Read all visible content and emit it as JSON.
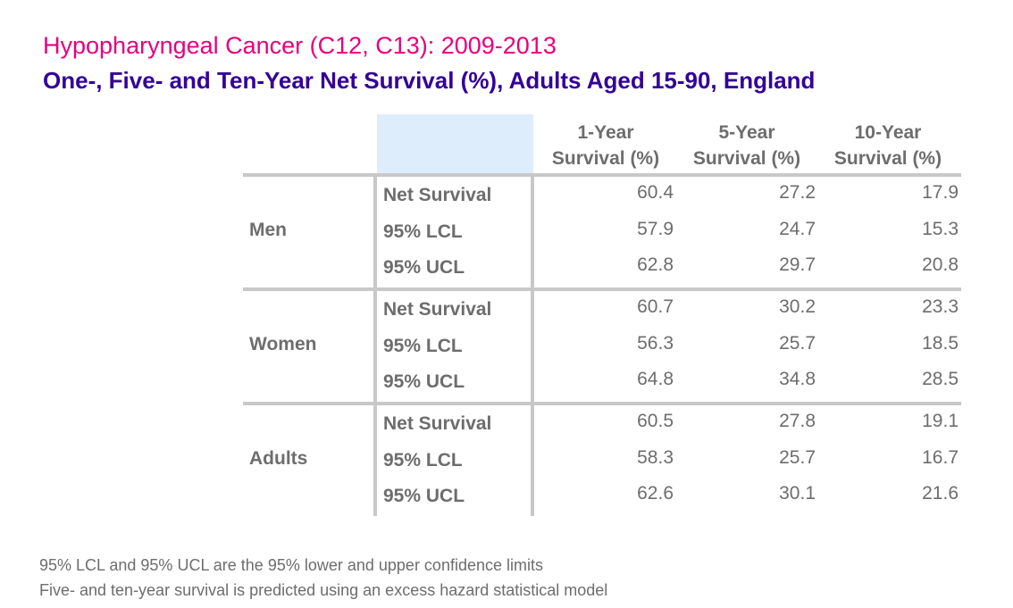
{
  "title": "Hypopharyngeal Cancer (C12, C13): 2009-2013",
  "subtitle": "One-, Five- and Ten-Year Net Survival (%), Adults Aged 15-90, England",
  "colors": {
    "title": "#e6007e",
    "subtitle": "#330099",
    "header_fill": "#ddedfc",
    "rules": "#c8c8c8",
    "text": "#6d6d6d"
  },
  "footnotes": [
    "95% LCL and 95% UCL are the 95% lower and upper confidence limits",
    "Five- and ten-year survival is predicted using an excess hazard statistical model"
  ],
  "chart_data": {
    "type": "table",
    "columns": [
      {
        "line1": "1-Year",
        "line2": "Survival (%)"
      },
      {
        "line1": "5-Year",
        "line2": "Survival (%)"
      },
      {
        "line1": "10-Year",
        "line2": "Survival (%)"
      }
    ],
    "groups": [
      {
        "name": "Men",
        "rows": [
          {
            "measure": "Net Survival",
            "values": [
              "60.4",
              "27.2",
              "17.9"
            ]
          },
          {
            "measure": "95% LCL",
            "values": [
              "57.9",
              "24.7",
              "15.3"
            ]
          },
          {
            "measure": "95% UCL",
            "values": [
              "62.8",
              "29.7",
              "20.8"
            ]
          }
        ]
      },
      {
        "name": "Women",
        "rows": [
          {
            "measure": "Net Survival",
            "values": [
              "60.7",
              "30.2",
              "23.3"
            ]
          },
          {
            "measure": "95% LCL",
            "values": [
              "56.3",
              "25.7",
              "18.5"
            ]
          },
          {
            "measure": "95% UCL",
            "values": [
              "64.8",
              "34.8",
              "28.5"
            ]
          }
        ]
      },
      {
        "name": "Adults",
        "rows": [
          {
            "measure": "Net Survival",
            "values": [
              "60.5",
              "27.8",
              "19.1"
            ]
          },
          {
            "measure": "95% LCL",
            "values": [
              "58.3",
              "25.7",
              "16.7"
            ]
          },
          {
            "measure": "95% UCL",
            "values": [
              "62.6",
              "30.1",
              "21.6"
            ]
          }
        ]
      }
    ]
  }
}
